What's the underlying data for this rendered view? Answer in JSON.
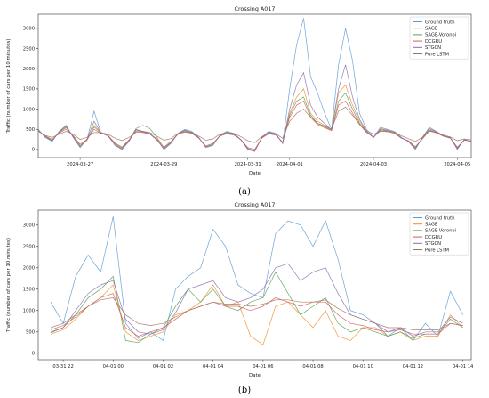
{
  "captions": [
    "(a)",
    "(b)"
  ],
  "chart_data": [
    {
      "type": "line",
      "title": "Crossing A017",
      "xlabel": "Date",
      "ylabel": "Traffic (number of cars per 10 minutes)",
      "xlim": [
        "2024-03-26 00:00",
        "2024-04-05 08:00"
      ],
      "ylim": [
        -200,
        3350
      ],
      "x_ticks": [
        "2024-03-27",
        "2024-03-29",
        "2024-03-31",
        "2024-04-01",
        "2024-04-03",
        "2024-04-05"
      ],
      "y_ticks": [
        0,
        500,
        1000,
        1500,
        2000,
        2500,
        3000
      ],
      "legend_position": "top-right",
      "sampling": "every 4 hours",
      "x": [
        "2024-03-26 00:00",
        "2024-03-26 04:00",
        "2024-03-26 08:00",
        "2024-03-26 12:00",
        "2024-03-26 16:00",
        "2024-03-26 20:00",
        "2024-03-27 00:00",
        "2024-03-27 04:00",
        "2024-03-27 08:00",
        "2024-03-27 12:00",
        "2024-03-27 16:00",
        "2024-03-27 20:00",
        "2024-03-28 00:00",
        "2024-03-28 04:00",
        "2024-03-28 08:00",
        "2024-03-28 12:00",
        "2024-03-28 16:00",
        "2024-03-28 20:00",
        "2024-03-29 00:00",
        "2024-03-29 04:00",
        "2024-03-29 08:00",
        "2024-03-29 12:00",
        "2024-03-29 16:00",
        "2024-03-29 20:00",
        "2024-03-30 00:00",
        "2024-03-30 04:00",
        "2024-03-30 08:00",
        "2024-03-30 12:00",
        "2024-03-30 16:00",
        "2024-03-30 20:00",
        "2024-03-31 00:00",
        "2024-03-31 04:00",
        "2024-03-31 08:00",
        "2024-03-31 12:00",
        "2024-03-31 16:00",
        "2024-03-31 20:00",
        "2024-04-01 00:00",
        "2024-04-01 04:00",
        "2024-04-01 08:00",
        "2024-04-01 12:00",
        "2024-04-01 16:00",
        "2024-04-01 20:00",
        "2024-04-02 00:00",
        "2024-04-02 04:00",
        "2024-04-02 08:00",
        "2024-04-02 12:00",
        "2024-04-02 16:00",
        "2024-04-02 20:00",
        "2024-04-03 00:00",
        "2024-04-03 04:00",
        "2024-04-03 08:00",
        "2024-04-03 12:00",
        "2024-04-03 16:00",
        "2024-04-03 20:00",
        "2024-04-04 00:00",
        "2024-04-04 04:00",
        "2024-04-04 08:00",
        "2024-04-04 12:00",
        "2024-04-04 16:00",
        "2024-04-04 20:00",
        "2024-04-05 00:00",
        "2024-04-05 04:00",
        "2024-04-05 08:00"
      ],
      "series": [
        {
          "name": "Ground truth",
          "color": "#5b9bd5",
          "values": [
            500,
            300,
            200,
            450,
            600,
            300,
            50,
            250,
            950,
            400,
            350,
            100,
            0,
            200,
            500,
            450,
            400,
            250,
            0,
            150,
            400,
            500,
            450,
            300,
            50,
            100,
            350,
            450,
            400,
            250,
            0,
            -50,
            300,
            450,
            400,
            150,
            1500,
            2600,
            3250,
            1800,
            1400,
            900,
            500,
            2100,
            3000,
            2200,
            900,
            500,
            300,
            550,
            500,
            450,
            300,
            200,
            0,
            300,
            550,
            450,
            350,
            300,
            0,
            250,
            200
          ]
        },
        {
          "name": "SAGE",
          "color": "#f28e2b",
          "values": [
            480,
            320,
            220,
            430,
            560,
            320,
            80,
            230,
            600,
            420,
            330,
            120,
            20,
            220,
            480,
            430,
            380,
            230,
            20,
            170,
            380,
            470,
            420,
            290,
            60,
            120,
            330,
            420,
            380,
            240,
            20,
            -40,
            280,
            420,
            380,
            160,
            900,
            1300,
            1500,
            900,
            700,
            600,
            500,
            1400,
            1600,
            1100,
            700,
            450,
            300,
            500,
            470,
            420,
            290,
            200,
            30,
            280,
            500,
            430,
            330,
            280,
            30,
            240,
            200
          ]
        },
        {
          "name": "SAGE-Voronoi",
          "color": "#59a14f",
          "values": [
            470,
            330,
            230,
            420,
            540,
            330,
            100,
            240,
            560,
            410,
            340,
            140,
            40,
            230,
            520,
            600,
            520,
            300,
            40,
            180,
            390,
            460,
            410,
            280,
            70,
            130,
            340,
            410,
            370,
            250,
            30,
            -30,
            290,
            410,
            370,
            170,
            850,
            1200,
            1300,
            850,
            650,
            560,
            480,
            1200,
            1400,
            1000,
            650,
            430,
            300,
            480,
            460,
            410,
            280,
            210,
            50,
            270,
            480,
            420,
            330,
            290,
            40,
            230,
            210
          ]
        },
        {
          "name": "DCGRU",
          "color": "#e15759",
          "values": [
            460,
            340,
            250,
            410,
            500,
            350,
            130,
            250,
            500,
            400,
            350,
            160,
            60,
            240,
            450,
            420,
            380,
            260,
            60,
            200,
            380,
            430,
            400,
            280,
            90,
            150,
            330,
            390,
            360,
            250,
            50,
            0,
            280,
            390,
            360,
            180,
            800,
            1100,
            1200,
            800,
            620,
            540,
            470,
            1100,
            1200,
            900,
            620,
            420,
            310,
            460,
            440,
            400,
            280,
            220,
            70,
            260,
            460,
            410,
            330,
            290,
            60,
            230,
            210
          ]
        },
        {
          "name": "STGCN",
          "color": "#8c6bb1",
          "values": [
            490,
            310,
            210,
            440,
            580,
            310,
            60,
            260,
            700,
            410,
            340,
            110,
            10,
            210,
            490,
            440,
            390,
            240,
            10,
            160,
            390,
            480,
            430,
            290,
            60,
            110,
            340,
            430,
            390,
            240,
            10,
            -40,
            290,
            430,
            390,
            150,
            1000,
            1600,
            1900,
            1100,
            800,
            650,
            480,
            1500,
            2100,
            1300,
            750,
            460,
            290,
            520,
            480,
            430,
            290,
            200,
            20,
            290,
            520,
            440,
            340,
            290,
            20,
            240,
            200
          ]
        },
        {
          "name": "Pure LSTM",
          "color": "#9c755f",
          "values": [
            450,
            350,
            300,
            380,
            450,
            380,
            250,
            300,
            420,
            420,
            380,
            280,
            220,
            300,
            420,
            450,
            420,
            330,
            230,
            270,
            400,
            440,
            420,
            330,
            230,
            260,
            380,
            420,
            400,
            320,
            220,
            170,
            320,
            400,
            390,
            280,
            700,
            900,
            1000,
            800,
            650,
            580,
            500,
            950,
            1050,
            850,
            620,
            470,
            380,
            450,
            460,
            430,
            340,
            270,
            200,
            300,
            450,
            430,
            360,
            310,
            220,
            260,
            240
          ]
        }
      ]
    },
    {
      "type": "line",
      "title": "Crossing A017",
      "xlabel": "Date",
      "ylabel": "Traffic (number of cars per 10 minutes)",
      "xlim": [
        "03-31 21:00",
        "04-01 14:20"
      ],
      "ylim": [
        -150,
        3350
      ],
      "x_ticks": [
        "03-31 22",
        "04-01 00",
        "04-01 02",
        "04-01 04",
        "04-01 06",
        "04-01 08",
        "04-01 10",
        "04-01 12",
        "04-01 14"
      ],
      "y_ticks": [
        0,
        500,
        1000,
        1500,
        2000,
        2500,
        3000
      ],
      "legend_position": "top-right",
      "sampling": "every 30 minutes",
      "x": [
        "03-31 21:30",
        "03-31 22:00",
        "03-31 22:30",
        "03-31 23:00",
        "03-31 23:30",
        "04-01 00:00",
        "04-01 00:30",
        "04-01 01:00",
        "04-01 01:30",
        "04-01 02:00",
        "04-01 02:30",
        "04-01 03:00",
        "04-01 03:30",
        "04-01 04:00",
        "04-01 04:30",
        "04-01 05:00",
        "04-01 05:30",
        "04-01 06:00",
        "04-01 06:30",
        "04-01 07:00",
        "04-01 07:30",
        "04-01 08:00",
        "04-01 08:30",
        "04-01 09:00",
        "04-01 09:30",
        "04-01 10:00",
        "04-01 10:30",
        "04-01 11:00",
        "04-01 11:30",
        "04-01 12:00",
        "04-01 12:30",
        "04-01 13:00",
        "04-01 13:30",
        "04-01 14:00"
      ],
      "series": [
        {
          "name": "Ground truth",
          "color": "#5b9bd5",
          "values": [
            1200,
            700,
            1800,
            2300,
            1900,
            3200,
            700,
            350,
            500,
            300,
            1500,
            1800,
            2000,
            2900,
            2500,
            1600,
            1400,
            1300,
            2800,
            3100,
            3000,
            2500,
            3100,
            2200,
            1000,
            900,
            700,
            400,
            600,
            300,
            700,
            400,
            1450,
            900
          ]
        },
        {
          "name": "SAGE",
          "color": "#f28e2b",
          "values": [
            450,
            550,
            800,
            1100,
            1300,
            1600,
            500,
            300,
            400,
            500,
            900,
            1000,
            1200,
            1600,
            1100,
            1200,
            400,
            200,
            1100,
            1200,
            900,
            600,
            1000,
            400,
            300,
            600,
            600,
            400,
            500,
            300,
            400,
            400,
            900,
            600
          ]
        },
        {
          "name": "SAGE-Voronoi",
          "color": "#59a14f",
          "values": [
            500,
            600,
            900,
            1300,
            1500,
            1800,
            300,
            250,
            450,
            600,
            1100,
            1500,
            1200,
            1500,
            1100,
            1000,
            1200,
            1300,
            1900,
            1400,
            900,
            1100,
            1300,
            700,
            500,
            600,
            500,
            400,
            500,
            350,
            450,
            450,
            800,
            600
          ]
        },
        {
          "name": "DCGRU",
          "color": "#e15759",
          "values": [
            550,
            650,
            850,
            1100,
            1300,
            1400,
            600,
            400,
            500,
            600,
            800,
            1000,
            1100,
            1200,
            1100,
            1100,
            1000,
            1100,
            1300,
            1200,
            1100,
            1200,
            1200,
            900,
            700,
            650,
            550,
            500,
            550,
            450,
            450,
            450,
            700,
            650
          ]
        },
        {
          "name": "STGCN",
          "color": "#8c6bb1",
          "values": [
            480,
            600,
            1000,
            1400,
            1600,
            1700,
            800,
            500,
            450,
            550,
            950,
            1500,
            1600,
            1700,
            1300,
            1200,
            1300,
            1500,
            2000,
            2100,
            1700,
            1900,
            2000,
            1400,
            900,
            800,
            700,
            500,
            600,
            400,
            500,
            500,
            850,
            700
          ]
        },
        {
          "name": "Pure LSTM",
          "color": "#9c755f",
          "values": [
            600,
            700,
            900,
            1100,
            1250,
            1300,
            900,
            700,
            650,
            700,
            850,
            1000,
            1100,
            1200,
            1150,
            1150,
            1100,
            1150,
            1250,
            1250,
            1200,
            1200,
            1250,
            1050,
            900,
            800,
            700,
            600,
            600,
            550,
            550,
            550,
            700,
            650
          ]
        }
      ]
    }
  ]
}
